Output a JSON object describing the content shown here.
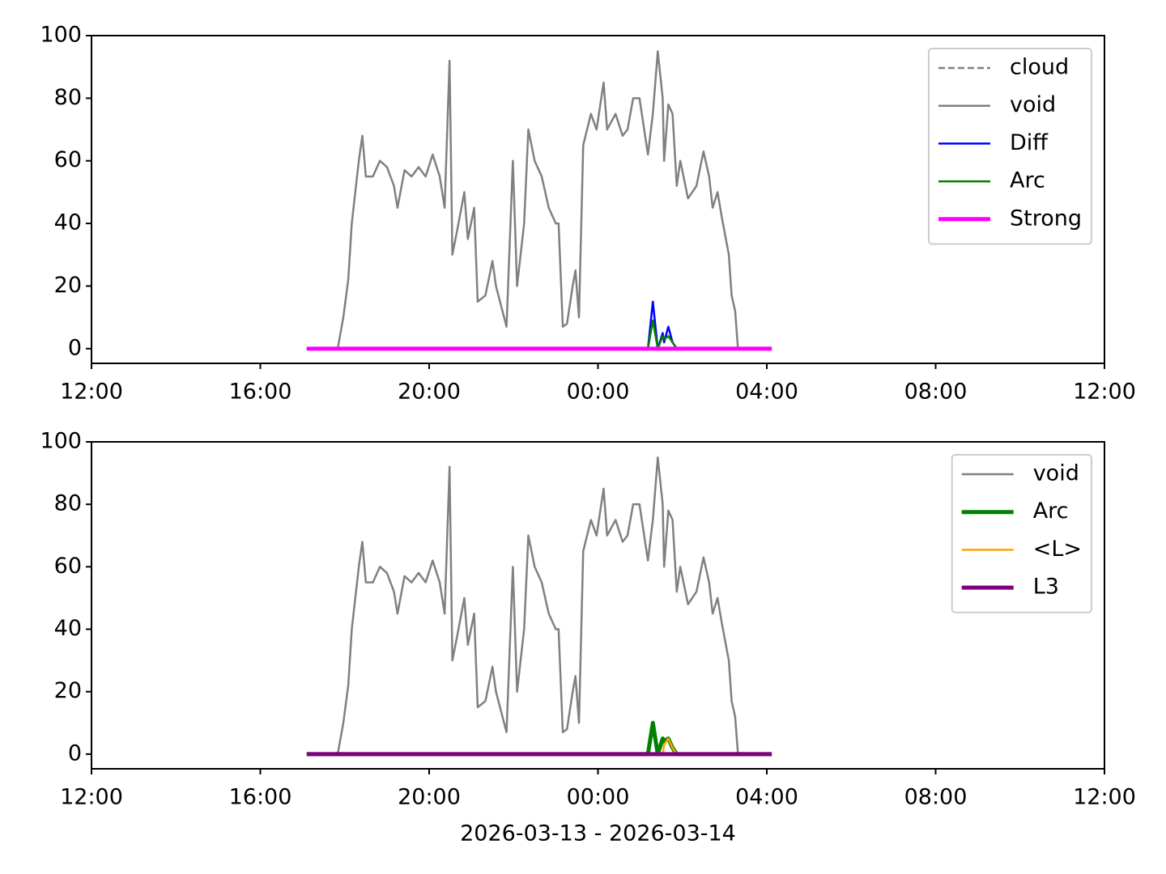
{
  "chart_data": [
    {
      "type": "line",
      "x": [
        "2026-03-13T17:06",
        "2026-03-13T17:30",
        "2026-03-13T17:50",
        "2026-03-13T17:58",
        "2026-03-13T18:05",
        "2026-03-13T18:10",
        "2026-03-13T18:15",
        "2026-03-13T18:20",
        "2026-03-13T18:25",
        "2026-03-13T18:30",
        "2026-03-13T18:40",
        "2026-03-13T18:50",
        "2026-03-13T19:00",
        "2026-03-13T19:10",
        "2026-03-13T19:15",
        "2026-03-13T19:25",
        "2026-03-13T19:35",
        "2026-03-13T19:45",
        "2026-03-13T19:55",
        "2026-03-13T20:05",
        "2026-03-13T20:15",
        "2026-03-13T20:22",
        "2026-03-13T20:29",
        "2026-03-13T20:33",
        "2026-03-13T20:40",
        "2026-03-13T20:50",
        "2026-03-13T20:55",
        "2026-03-13T21:04",
        "2026-03-13T21:09",
        "2026-03-13T21:20",
        "2026-03-13T21:30",
        "2026-03-13T21:35",
        "2026-03-13T21:50",
        "2026-03-13T21:59",
        "2026-03-13T22:05",
        "2026-03-13T22:15",
        "2026-03-13T22:21",
        "2026-03-13T22:30",
        "2026-03-13T22:40",
        "2026-03-13T22:50",
        "2026-03-13T23:00",
        "2026-03-13T23:04",
        "2026-03-13T23:10",
        "2026-03-13T23:16",
        "2026-03-13T23:24",
        "2026-03-13T23:28",
        "2026-03-13T23:33",
        "2026-03-13T23:39",
        "2026-03-13T23:50",
        "2026-03-13T23:58",
        "2026-03-14T00:08",
        "2026-03-14T00:13",
        "2026-03-14T00:25",
        "2026-03-14T00:35",
        "2026-03-14T00:42",
        "2026-03-14T00:50",
        "2026-03-14T00:59",
        "2026-03-14T01:11",
        "2026-03-14T01:18",
        "2026-03-14T01:25",
        "2026-03-14T01:32",
        "2026-03-14T01:34",
        "2026-03-14T01:40",
        "2026-03-14T01:46",
        "2026-03-14T01:52",
        "2026-03-14T01:57",
        "2026-03-14T02:08",
        "2026-03-14T02:20",
        "2026-03-14T02:30",
        "2026-03-14T02:38",
        "2026-03-14T02:43",
        "2026-03-14T02:50",
        "2026-03-14T02:56",
        "2026-03-14T03:06",
        "2026-03-14T03:10",
        "2026-03-14T03:15",
        "2026-03-14T03:19",
        "2026-03-14T03:40",
        "2026-03-14T04:07"
      ],
      "series": [
        {
          "name": "cloud",
          "color": "#808080",
          "linewidth": 2.5,
          "linestyle": "dashed",
          "values": [
            0,
            0,
            0,
            0,
            0,
            0,
            0,
            0,
            0,
            0,
            0,
            0,
            0,
            0,
            0,
            0,
            0,
            0,
            0,
            0,
            0,
            0,
            0,
            0,
            0,
            0,
            0,
            0,
            0,
            0,
            0,
            0,
            0,
            0,
            0,
            0,
            0,
            0,
            0,
            0,
            0,
            0,
            0,
            0,
            0,
            0,
            0,
            0,
            0,
            0,
            0,
            0,
            0,
            0,
            0,
            0,
            0,
            0,
            0,
            0,
            0,
            0,
            0,
            0,
            0,
            0,
            0,
            0,
            0,
            0,
            0,
            0,
            0,
            0,
            0,
            0,
            0,
            0,
            0
          ]
        },
        {
          "name": "void",
          "color": "#808080",
          "linewidth": 2.5,
          "linestyle": "solid",
          "values": [
            0,
            0,
            0,
            10,
            22,
            40,
            50,
            60,
            68,
            55,
            55,
            60,
            58,
            52,
            45,
            57,
            55,
            58,
            55,
            62,
            55,
            45,
            92,
            30,
            38,
            50,
            35,
            45,
            15,
            17,
            28,
            20,
            7,
            60,
            20,
            40,
            70,
            60,
            55,
            45,
            40,
            40,
            7,
            8,
            20,
            25,
            10,
            65,
            75,
            70,
            85,
            70,
            75,
            68,
            70,
            80,
            80,
            62,
            75,
            95,
            80,
            60,
            78,
            75,
            52,
            60,
            48,
            52,
            63,
            55,
            45,
            50,
            42,
            30,
            17,
            12,
            0,
            0,
            0
          ]
        },
        {
          "name": "Diff",
          "color": "#0000ff",
          "linewidth": 2.5,
          "linestyle": "solid",
          "values": [
            0,
            0,
            0,
            0,
            0,
            0,
            0,
            0,
            0,
            0,
            0,
            0,
            0,
            0,
            0,
            0,
            0,
            0,
            0,
            0,
            0,
            0,
            0,
            0,
            0,
            0,
            0,
            0,
            0,
            0,
            0,
            0,
            0,
            0,
            0,
            0,
            0,
            0,
            0,
            0,
            0,
            0,
            0,
            0,
            0,
            0,
            0,
            0,
            0,
            0,
            0,
            0,
            0,
            0,
            0,
            0,
            0,
            0,
            15,
            0,
            5,
            2,
            7,
            2,
            0,
            0,
            0,
            0,
            0,
            0,
            0,
            0,
            0,
            0,
            0,
            0,
            0,
            0,
            0
          ]
        },
        {
          "name": "Arc",
          "color": "#008000",
          "linewidth": 2.5,
          "linestyle": "solid",
          "values": [
            0,
            0,
            0,
            0,
            0,
            0,
            0,
            0,
            0,
            0,
            0,
            0,
            0,
            0,
            0,
            0,
            0,
            0,
            0,
            0,
            0,
            0,
            0,
            0,
            0,
            0,
            0,
            0,
            0,
            0,
            0,
            0,
            0,
            0,
            0,
            0,
            0,
            0,
            0,
            0,
            0,
            0,
            0,
            0,
            0,
            0,
            0,
            0,
            0,
            0,
            0,
            0,
            0,
            0,
            0,
            0,
            0,
            0,
            9,
            0,
            4,
            3,
            4,
            2,
            0,
            0,
            0,
            0,
            0,
            0,
            0,
            0,
            0,
            0,
            0,
            0,
            0,
            0,
            0
          ]
        },
        {
          "name": "Strong",
          "color": "#ff00ff",
          "linewidth": 5,
          "linestyle": "solid",
          "values": [
            0,
            0,
            0,
            0,
            0,
            0,
            0,
            0,
            0,
            0,
            0,
            0,
            0,
            0,
            0,
            0,
            0,
            0,
            0,
            0,
            0,
            0,
            0,
            0,
            0,
            0,
            0,
            0,
            0,
            0,
            0,
            0,
            0,
            0,
            0,
            0,
            0,
            0,
            0,
            0,
            0,
            0,
            0,
            0,
            0,
            0,
            0,
            0,
            0,
            0,
            0,
            0,
            0,
            0,
            0,
            0,
            0,
            0,
            0,
            0,
            0,
            0,
            0,
            0,
            0,
            0,
            0,
            0,
            0,
            0,
            0,
            0,
            0,
            0,
            0,
            0,
            0,
            0,
            0
          ]
        }
      ],
      "xlim": [
        "2026-03-13T12:00",
        "2026-03-14T12:00"
      ],
      "xticks": [
        {
          "value": "2026-03-13T12:00",
          "label": "12:00"
        },
        {
          "value": "2026-03-13T16:00",
          "label": "16:00"
        },
        {
          "value": "2026-03-13T20:00",
          "label": "20:00"
        },
        {
          "value": "2026-03-14T00:00",
          "label": "00:00"
        },
        {
          "value": "2026-03-14T04:00",
          "label": "04:00"
        },
        {
          "value": "2026-03-14T08:00",
          "label": "08:00"
        },
        {
          "value": "2026-03-14T12:00",
          "label": "12:00"
        }
      ],
      "ylim": [
        -4.7,
        100
      ],
      "yticks": [
        0,
        20,
        40,
        60,
        80,
        100
      ],
      "legend": "upper right"
    },
    {
      "type": "line",
      "x": [
        "2026-03-13T17:06",
        "2026-03-13T17:30",
        "2026-03-13T17:50",
        "2026-03-13T17:58",
        "2026-03-13T18:05",
        "2026-03-13T18:10",
        "2026-03-13T18:15",
        "2026-03-13T18:20",
        "2026-03-13T18:25",
        "2026-03-13T18:30",
        "2026-03-13T18:40",
        "2026-03-13T18:50",
        "2026-03-13T19:00",
        "2026-03-13T19:10",
        "2026-03-13T19:15",
        "2026-03-13T19:25",
        "2026-03-13T19:35",
        "2026-03-13T19:45",
        "2026-03-13T19:55",
        "2026-03-13T20:05",
        "2026-03-13T20:15",
        "2026-03-13T20:22",
        "2026-03-13T20:29",
        "2026-03-13T20:33",
        "2026-03-13T20:40",
        "2026-03-13T20:50",
        "2026-03-13T20:55",
        "2026-03-13T21:04",
        "2026-03-13T21:09",
        "2026-03-13T21:20",
        "2026-03-13T21:30",
        "2026-03-13T21:35",
        "2026-03-13T21:50",
        "2026-03-13T21:59",
        "2026-03-13T22:05",
        "2026-03-13T22:15",
        "2026-03-13T22:21",
        "2026-03-13T22:30",
        "2026-03-13T22:40",
        "2026-03-13T22:50",
        "2026-03-13T23:00",
        "2026-03-13T23:04",
        "2026-03-13T23:10",
        "2026-03-13T23:16",
        "2026-03-13T23:24",
        "2026-03-13T23:28",
        "2026-03-13T23:33",
        "2026-03-13T23:39",
        "2026-03-13T23:50",
        "2026-03-13T23:58",
        "2026-03-14T00:08",
        "2026-03-14T00:13",
        "2026-03-14T00:25",
        "2026-03-14T00:35",
        "2026-03-14T00:42",
        "2026-03-14T00:50",
        "2026-03-14T00:59",
        "2026-03-14T01:11",
        "2026-03-14T01:18",
        "2026-03-14T01:25",
        "2026-03-14T01:32",
        "2026-03-14T01:34",
        "2026-03-14T01:40",
        "2026-03-14T01:46",
        "2026-03-14T01:52",
        "2026-03-14T01:57",
        "2026-03-14T02:08",
        "2026-03-14T02:20",
        "2026-03-14T02:30",
        "2026-03-14T02:38",
        "2026-03-14T02:43",
        "2026-03-14T02:50",
        "2026-03-14T02:56",
        "2026-03-14T03:06",
        "2026-03-14T03:10",
        "2026-03-14T03:15",
        "2026-03-14T03:19",
        "2026-03-14T03:40",
        "2026-03-14T04:07"
      ],
      "series": [
        {
          "name": "void",
          "color": "#808080",
          "linewidth": 2.5,
          "linestyle": "solid",
          "values": [
            0,
            0,
            0,
            10,
            22,
            40,
            50,
            60,
            68,
            55,
            55,
            60,
            58,
            52,
            45,
            57,
            55,
            58,
            55,
            62,
            55,
            45,
            92,
            30,
            38,
            50,
            35,
            45,
            15,
            17,
            28,
            20,
            7,
            60,
            20,
            40,
            70,
            60,
            55,
            45,
            40,
            40,
            7,
            8,
            20,
            25,
            10,
            65,
            75,
            70,
            85,
            70,
            75,
            68,
            70,
            80,
            80,
            62,
            75,
            95,
            80,
            60,
            78,
            75,
            52,
            60,
            48,
            52,
            63,
            55,
            45,
            50,
            42,
            30,
            17,
            12,
            0,
            0,
            0
          ]
        },
        {
          "name": "Arc",
          "color": "#008000",
          "linewidth": 5,
          "linestyle": "solid",
          "values": [
            0,
            0,
            0,
            0,
            0,
            0,
            0,
            0,
            0,
            0,
            0,
            0,
            0,
            0,
            0,
            0,
            0,
            0,
            0,
            0,
            0,
            0,
            0,
            0,
            0,
            0,
            0,
            0,
            0,
            0,
            0,
            0,
            0,
            0,
            0,
            0,
            0,
            0,
            0,
            0,
            0,
            0,
            0,
            0,
            0,
            0,
            0,
            0,
            0,
            0,
            0,
            0,
            0,
            0,
            0,
            0,
            0,
            0,
            10,
            0,
            5,
            4,
            5,
            2,
            0,
            0,
            0,
            0,
            0,
            0,
            0,
            0,
            0,
            0,
            0,
            0,
            0,
            0,
            0
          ]
        },
        {
          "name": "<L>",
          "color": "#ffa500",
          "linewidth": 2.5,
          "linestyle": "solid",
          "values": [
            0,
            0,
            0,
            0,
            0,
            0,
            0,
            0,
            0,
            0,
            0,
            0,
            0,
            0,
            0,
            0,
            0,
            0,
            0,
            0,
            0,
            0,
            0,
            0,
            0,
            0,
            0,
            0,
            0,
            0,
            0,
            0,
            0,
            0,
            0,
            0,
            0,
            0,
            0,
            0,
            0,
            0,
            0,
            0,
            0,
            0,
            0,
            0,
            0,
            0,
            0,
            0,
            0,
            0,
            0,
            0,
            0,
            0,
            0,
            0,
            0,
            3,
            5,
            2,
            0,
            0,
            0,
            0,
            0,
            0,
            0,
            0,
            0,
            0,
            0,
            0,
            0,
            0,
            0
          ]
        },
        {
          "name": "L3",
          "color": "#800080",
          "linewidth": 5,
          "linestyle": "solid",
          "values": [
            0,
            0,
            0,
            0,
            0,
            0,
            0,
            0,
            0,
            0,
            0,
            0,
            0,
            0,
            0,
            0,
            0,
            0,
            0,
            0,
            0,
            0,
            0,
            0,
            0,
            0,
            0,
            0,
            0,
            0,
            0,
            0,
            0,
            0,
            0,
            0,
            0,
            0,
            0,
            0,
            0,
            0,
            0,
            0,
            0,
            0,
            0,
            0,
            0,
            0,
            0,
            0,
            0,
            0,
            0,
            0,
            0,
            0,
            0,
            0,
            0,
            0,
            0,
            0,
            0,
            0,
            0,
            0,
            0,
            0,
            0,
            0,
            0,
            0,
            0,
            0,
            0,
            0,
            0
          ]
        }
      ],
      "xlim": [
        "2026-03-13T12:00",
        "2026-03-14T12:00"
      ],
      "xticks": [
        {
          "value": "2026-03-13T12:00",
          "label": "12:00"
        },
        {
          "value": "2026-03-13T16:00",
          "label": "16:00"
        },
        {
          "value": "2026-03-13T20:00",
          "label": "20:00"
        },
        {
          "value": "2026-03-14T00:00",
          "label": "00:00"
        },
        {
          "value": "2026-03-14T04:00",
          "label": "04:00"
        },
        {
          "value": "2026-03-14T08:00",
          "label": "08:00"
        },
        {
          "value": "2026-03-14T12:00",
          "label": "12:00"
        }
      ],
      "ylim": [
        -4.7,
        100
      ],
      "yticks": [
        0,
        20,
        40,
        60,
        80,
        100
      ],
      "xlabel": "2026-03-13 - 2026-03-14",
      "legend": "upper right"
    }
  ]
}
